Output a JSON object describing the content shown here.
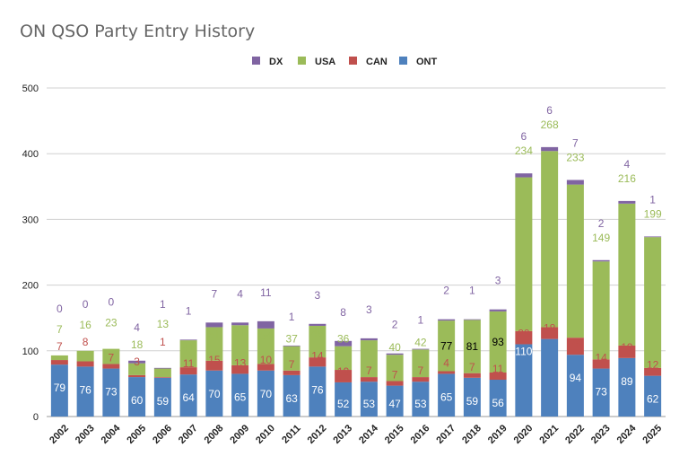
{
  "chart_data": {
    "type": "bar",
    "stacked": true,
    "title": "ON QSO Party Entry History",
    "xlabel": "",
    "ylabel": "",
    "ylim": [
      0,
      500
    ],
    "yticks": [
      0,
      100,
      200,
      300,
      400,
      500
    ],
    "grid": true,
    "legend_position": "top",
    "legend_order": [
      "DX",
      "USA",
      "CAN",
      "ONT"
    ],
    "categories": [
      "2002",
      "2003",
      "2004",
      "2005",
      "2006",
      "2007",
      "2008",
      "2009",
      "2010",
      "2011",
      "2012",
      "2013",
      "2014",
      "2015",
      "2016",
      "2017",
      "2018",
      "2019",
      "2020",
      "2021",
      "2022",
      "2023",
      "2024",
      "2025"
    ],
    "series": [
      {
        "name": "ONT",
        "color": "#4e81bd",
        "values": [
          79,
          76,
          73,
          60,
          59,
          64,
          70,
          65,
          70,
          63,
          76,
          52,
          53,
          47,
          53,
          65,
          59,
          56,
          110,
          118,
          94,
          73,
          89,
          62
        ]
      },
      {
        "name": "CAN",
        "color": "#c0504d",
        "values": [
          7,
          8,
          7,
          3,
          1,
          11,
          15,
          13,
          10,
          7,
          14,
          19,
          7,
          7,
          7,
          4,
          7,
          11,
          20,
          18,
          26,
          14,
          19,
          12
        ]
      },
      {
        "name": "USA",
        "color": "#9bbb59",
        "values": [
          7,
          16,
          23,
          18,
          13,
          41,
          51,
          61,
          54,
          37,
          48,
          36,
          56,
          40,
          42,
          77,
          81,
          93,
          234,
          268,
          233,
          149,
          216,
          199
        ]
      },
      {
        "name": "DX",
        "color": "#8064a2",
        "values": [
          0,
          0,
          0,
          4,
          1,
          1,
          7,
          4,
          11,
          1,
          3,
          8,
          3,
          2,
          1,
          2,
          1,
          3,
          6,
          6,
          7,
          2,
          4,
          1
        ]
      }
    ]
  }
}
